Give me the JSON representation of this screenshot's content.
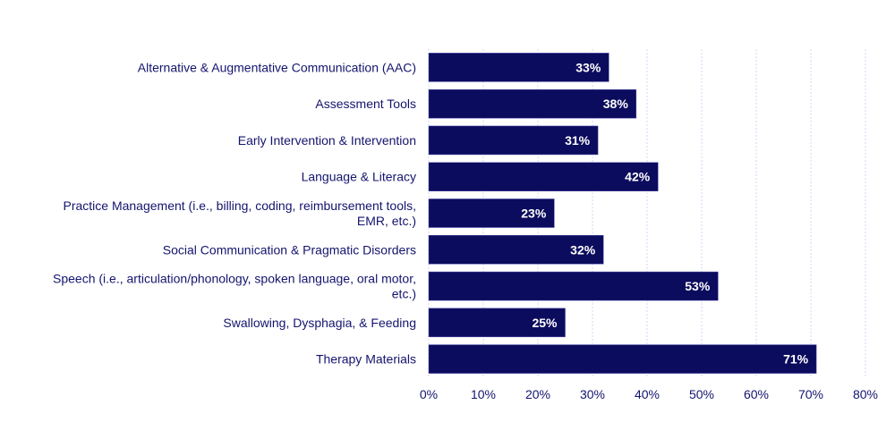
{
  "chart_data": {
    "type": "bar",
    "orientation": "horizontal",
    "categories": [
      [
        "Alternative & Augmentative Communication (AAC)"
      ],
      [
        "Assessment Tools"
      ],
      [
        "Early Intervention & Intervention"
      ],
      [
        "Language & Literacy"
      ],
      [
        "Practice Management (i.e., billing, coding, reimbursement tools,",
        "EMR, etc.)"
      ],
      [
        "Social Communication & Pragmatic Disorders"
      ],
      [
        "Speech (i.e., articulation/phonology, spoken language, oral motor,",
        "etc.)"
      ],
      [
        "Swallowing, Dysphagia, & Feeding"
      ],
      [
        "Therapy Materials"
      ]
    ],
    "values": [
      33,
      38,
      31,
      42,
      23,
      32,
      53,
      25,
      71
    ],
    "data_labels": [
      "33%",
      "38%",
      "31%",
      "42%",
      "23%",
      "32%",
      "53%",
      "25%",
      "71%"
    ],
    "xlim": [
      0,
      80
    ],
    "x_ticks": [
      "0%",
      "10%",
      "20%",
      "30%",
      "40%",
      "50%",
      "60%",
      "70%",
      "80%"
    ],
    "grid": "vertical dotted",
    "legend": "none",
    "colors": {
      "bar": "#0c0c5e",
      "text": "#14146e",
      "grid": "#d4d4f4"
    }
  }
}
